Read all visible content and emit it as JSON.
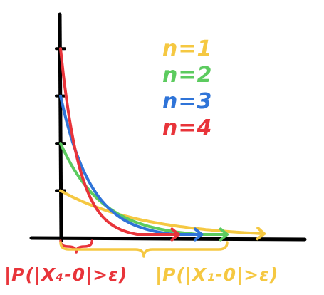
{
  "chart_data": {
    "type": "line",
    "title": "",
    "xlabel": "",
    "ylabel": "",
    "grid": false,
    "legend_position": "top-right",
    "y_ticks": [
      1,
      2,
      3,
      4
    ],
    "ylim": [
      0,
      4.5
    ],
    "xlim": [
      0,
      5
    ],
    "series": [
      {
        "name": "n=1",
        "color": "#F5C842",
        "curve": {
          "start": 1,
          "decay": 0.55
        }
      },
      {
        "name": "n=2",
        "color": "#5CCB5F",
        "curve": {
          "start": 2,
          "decay": 1.1
        }
      },
      {
        "name": "n=3",
        "color": "#2F74D8",
        "curve": {
          "start": 3,
          "decay": 1.5
        }
      },
      {
        "name": "n=4",
        "color": "#E8343A",
        "curve": {
          "start": 4,
          "decay": 2.4
        }
      }
    ],
    "annotations": [
      {
        "id": "red",
        "text": "|P(|X₄-0|>ε)",
        "color": "#E8343A",
        "brace_from": 0,
        "brace_to": 0.68
      },
      {
        "id": "yellow",
        "text": "|P(|X₁-0|>ε)",
        "color": "#F5C842",
        "brace_from": 0,
        "brace_to": 3.6
      }
    ]
  },
  "colors": {
    "axis": "#000000",
    "background": "#ffffff"
  }
}
